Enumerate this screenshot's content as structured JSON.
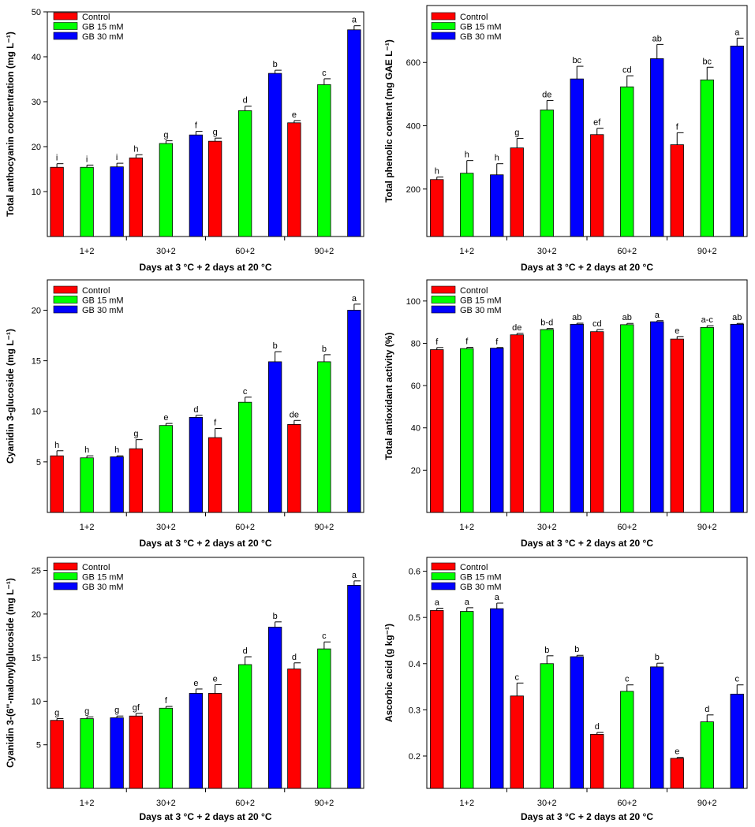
{
  "figure": {
    "categories": [
      "1+2",
      "30+2",
      "60+2",
      "90+2"
    ],
    "legend": [
      "Control",
      "GB 15 mM",
      "GB 30 mM"
    ],
    "colors": {
      "Control": "#ff0000",
      "GB 15 mM": "#00ff00",
      "GB 30 mM": "#0000ff"
    }
  },
  "chart_data": [
    {
      "type": "bar",
      "ylabel": "Total anthocyanin concentration (mg L⁻¹)",
      "xlabel": "Days at 3 °C + 2 days at 20 °C",
      "ylim": [
        0,
        50
      ],
      "yticks": [
        10,
        20,
        30,
        40,
        50
      ],
      "categories": [
        "1+2",
        "30+2",
        "60+2",
        "90+2"
      ],
      "series": [
        {
          "name": "Control",
          "values": [
            15.4,
            17.5,
            21.2,
            25.3
          ],
          "errors": [
            0.8,
            0.7,
            0.7,
            0.5
          ],
          "letters": [
            "i",
            "h",
            "g",
            "e"
          ]
        },
        {
          "name": "GB 15 mM",
          "values": [
            15.4,
            20.7,
            28.0,
            33.8
          ],
          "errors": [
            0.5,
            0.6,
            1.0,
            1.3
          ],
          "letters": [
            "i",
            "g",
            "d",
            "c"
          ]
        },
        {
          "name": "GB 30 mM",
          "values": [
            15.5,
            22.6,
            36.3,
            46.0
          ],
          "errors": [
            0.8,
            0.8,
            0.7,
            0.9
          ],
          "letters": [
            "i",
            "f",
            "b",
            "a"
          ]
        }
      ]
    },
    {
      "type": "bar",
      "ylabel": "Total phenolic content (mg GAE L⁻¹)",
      "xlabel": "Days at 3 °C + 2 days at 20 °C",
      "ylim": [
        50,
        780
      ],
      "yticks": [
        200,
        400,
        600
      ],
      "categories": [
        "1+2",
        "30+2",
        "60+2",
        "90+2"
      ],
      "series": [
        {
          "name": "Control",
          "values": [
            230,
            330,
            372,
            340
          ],
          "errors": [
            8,
            30,
            20,
            38
          ],
          "letters": [
            "h",
            "g",
            "ef",
            "f"
          ]
        },
        {
          "name": "GB 15 mM",
          "values": [
            250,
            450,
            523,
            545
          ],
          "errors": [
            40,
            30,
            35,
            40
          ],
          "letters": [
            "h",
            "de",
            "cd",
            "bc"
          ]
        },
        {
          "name": "GB 30 mM",
          "values": [
            245,
            548,
            612,
            652
          ],
          "errors": [
            35,
            40,
            45,
            25
          ],
          "letters": [
            "h",
            "bc",
            "ab",
            "a"
          ]
        }
      ]
    },
    {
      "type": "bar",
      "ylabel": "Cyanidin 3-glucoside  (mg L⁻¹)",
      "xlabel": "Days at 3 °C + 2 days at 20 °C",
      "ylim": [
        0,
        23
      ],
      "yticks": [
        5,
        10,
        15,
        20
      ],
      "categories": [
        "1+2",
        "30+2",
        "60+2",
        "90+2"
      ],
      "series": [
        {
          "name": "Control",
          "values": [
            5.6,
            6.3,
            7.4,
            8.7
          ],
          "errors": [
            0.5,
            0.9,
            0.9,
            0.4
          ],
          "letters": [
            "h",
            "g",
            "f",
            "de"
          ]
        },
        {
          "name": "GB 15 mM",
          "values": [
            5.4,
            8.6,
            10.9,
            14.9
          ],
          "errors": [
            0.2,
            0.2,
            0.5,
            0.7
          ],
          "letters": [
            "h",
            "e",
            "c",
            "b"
          ]
        },
        {
          "name": "GB 30 mM",
          "values": [
            5.5,
            9.4,
            14.9,
            20.0
          ],
          "errors": [
            0.1,
            0.2,
            1.0,
            0.6
          ],
          "letters": [
            "h",
            "d",
            "b",
            "a"
          ]
        }
      ]
    },
    {
      "type": "bar",
      "ylabel": "Total antioxidant activity (%)",
      "xlabel": "Days at 3 °C + 2 days at 20 °C",
      "ylim": [
        0,
        110
      ],
      "yticks": [
        20,
        40,
        60,
        80,
        100
      ],
      "categories": [
        "1+2",
        "30+2",
        "60+2",
        "90+2"
      ],
      "series": [
        {
          "name": "Control",
          "values": [
            77.0,
            84.0,
            85.5,
            82.0
          ],
          "errors": [
            1.0,
            0.7,
            1.0,
            1.2
          ],
          "letters": [
            "f",
            "de",
            "cd",
            "e"
          ]
        },
        {
          "name": "GB 15 mM",
          "values": [
            77.5,
            86.5,
            88.8,
            87.5
          ],
          "errors": [
            0.6,
            0.5,
            0.6,
            0.8
          ],
          "letters": [
            "f",
            "b-d",
            "ab",
            "a-c"
          ]
        },
        {
          "name": "GB 30 mM",
          "values": [
            77.7,
            89.0,
            90.2,
            89.0
          ],
          "errors": [
            0.3,
            0.5,
            0.5,
            0.4
          ],
          "letters": [
            "f",
            "ab",
            "a",
            "ab"
          ]
        }
      ]
    },
    {
      "type": "bar",
      "ylabel": "Cyanidin 3-(6''-malonyl)glucoside  (mg L⁻¹)",
      "xlabel": "Days at 3 °C + 2 days at 20 °C",
      "ylim": [
        0,
        26.5
      ],
      "yticks": [
        5,
        10,
        15,
        20,
        25
      ],
      "categories": [
        "1+2",
        "30+2",
        "60+2",
        "90+2"
      ],
      "series": [
        {
          "name": "Control",
          "values": [
            7.8,
            8.3,
            10.9,
            13.7
          ],
          "errors": [
            0.2,
            0.3,
            1.0,
            0.7
          ],
          "letters": [
            "g",
            "gf",
            "e",
            "d"
          ]
        },
        {
          "name": "GB 15 mM",
          "values": [
            8.0,
            9.2,
            14.2,
            16.0
          ],
          "errors": [
            0.2,
            0.2,
            0.9,
            0.8
          ],
          "letters": [
            "g",
            "f",
            "d",
            "c"
          ]
        },
        {
          "name": "GB 30 mM",
          "values": [
            8.1,
            10.9,
            18.5,
            23.3
          ],
          "errors": [
            0.2,
            0.5,
            0.6,
            0.5
          ],
          "letters": [
            "g",
            "e",
            "b",
            "a"
          ]
        }
      ]
    },
    {
      "type": "bar",
      "ylabel": "Ascorbic acid (g kg⁻¹)",
      "xlabel": "Days at 3 °C + 2 days at 20 °C",
      "ylim": [
        0.13,
        0.63
      ],
      "yticks": [
        0.2,
        0.3,
        0.4,
        0.5,
        0.6
      ],
      "categories": [
        "1+2",
        "30+2",
        "60+2",
        "90+2"
      ],
      "series": [
        {
          "name": "Control",
          "values": [
            0.515,
            0.33,
            0.247,
            0.195
          ],
          "errors": [
            0.005,
            0.028,
            0.004,
            0.002
          ],
          "letters": [
            "a",
            "c",
            "d",
            "e"
          ]
        },
        {
          "name": "GB 15 mM",
          "values": [
            0.513,
            0.4,
            0.34,
            0.274
          ],
          "errors": [
            0.008,
            0.017,
            0.014,
            0.015
          ],
          "letters": [
            "a",
            "b",
            "c",
            "d"
          ]
        },
        {
          "name": "GB 30 mM",
          "values": [
            0.519,
            0.415,
            0.393,
            0.334
          ],
          "errors": [
            0.012,
            0.003,
            0.008,
            0.02
          ],
          "letters": [
            "a",
            "b",
            "b",
            "c"
          ]
        }
      ]
    }
  ]
}
